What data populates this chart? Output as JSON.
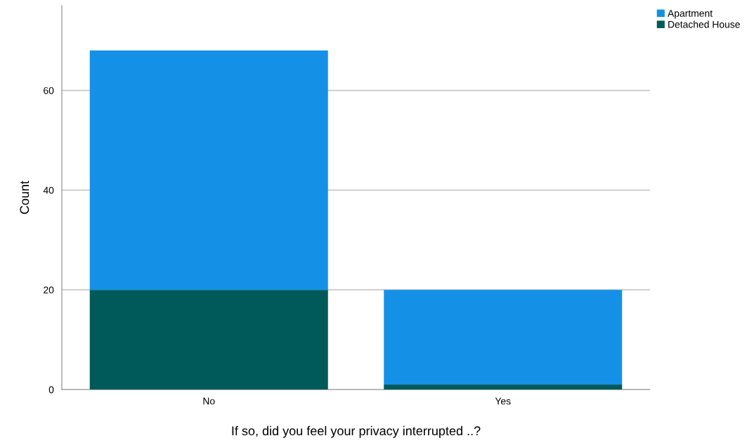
{
  "chart_data": {
    "type": "bar",
    "stacked": true,
    "xlabel": "If so, did you feel your privacy interrupted ..?",
    "ylabel": "Count",
    "categories": [
      "No",
      "Yes"
    ],
    "series": [
      {
        "name": "Detached House",
        "color": "#005a5a",
        "values": [
          20,
          1
        ]
      },
      {
        "name": "Apartment",
        "color": "#1491e6",
        "values": [
          48,
          19
        ]
      }
    ],
    "ylim": [
      0,
      77
    ],
    "yticks": [
      0,
      20,
      40,
      60
    ],
    "grid": "y",
    "legend": "top right"
  }
}
